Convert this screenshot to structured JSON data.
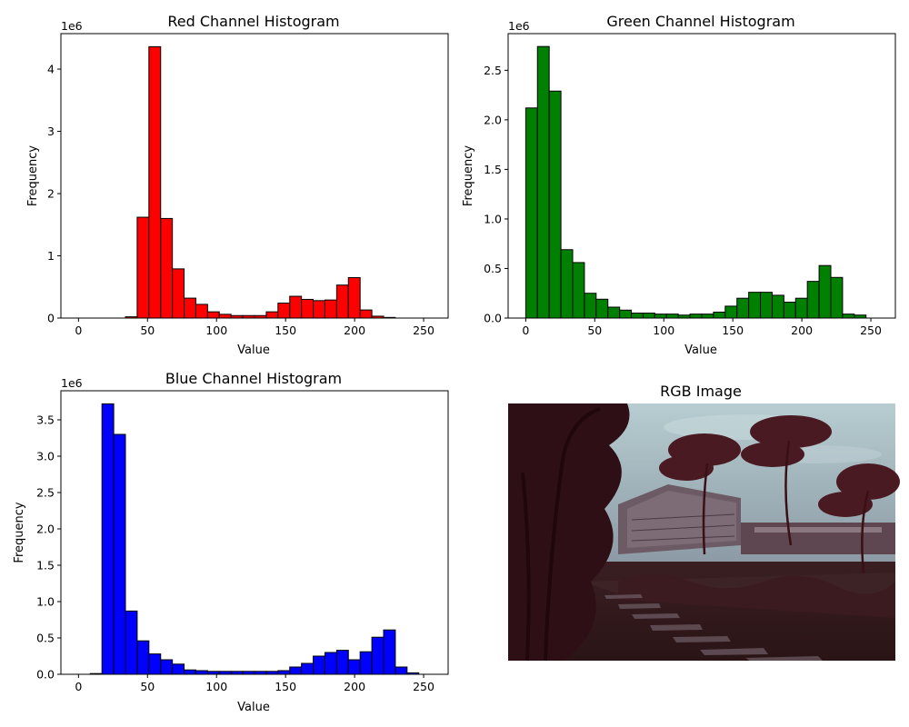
{
  "chart_data": [
    {
      "type": "bar",
      "title": "Red Channel Histogram",
      "xlabel": "Value",
      "ylabel": "Frequency",
      "scale_label": "1e6",
      "color": "#ff0000",
      "xlim": [
        -12.75,
        267.75
      ],
      "ylim": [
        0,
        4.57
      ],
      "xticks": [
        0,
        50,
        100,
        150,
        200,
        250
      ],
      "yticks": [
        0,
        1,
        2,
        3,
        4
      ],
      "ytick_labels": [
        "0",
        "1",
        "2",
        "3",
        "4"
      ],
      "bin_width": 8.5,
      "values": [
        0,
        0,
        0,
        0,
        0.02,
        1.62,
        4.36,
        1.6,
        0.79,
        0.32,
        0.22,
        0.1,
        0.06,
        0.04,
        0.04,
        0.04,
        0.1,
        0.24,
        0.35,
        0.3,
        0.28,
        0.29,
        0.53,
        0.65,
        0.13,
        0.03,
        0.01,
        0,
        0,
        0
      ]
    },
    {
      "type": "bar",
      "title": "Green Channel Histogram",
      "xlabel": "Value",
      "ylabel": "Frequency",
      "scale_label": "1e6",
      "color": "#008000",
      "xlim": [
        -12.75,
        267.75
      ],
      "ylim": [
        0,
        2.87
      ],
      "xticks": [
        0,
        50,
        100,
        150,
        200,
        250
      ],
      "yticks": [
        0,
        0.5,
        1.0,
        1.5,
        2.0,
        2.5
      ],
      "ytick_labels": [
        "0.0",
        "0.5",
        "1.0",
        "1.5",
        "2.0",
        "2.5"
      ],
      "bin_width": 8.5,
      "values": [
        2.12,
        2.74,
        2.29,
        0.69,
        0.56,
        0.25,
        0.19,
        0.11,
        0.08,
        0.05,
        0.05,
        0.04,
        0.04,
        0.03,
        0.04,
        0.04,
        0.06,
        0.12,
        0.2,
        0.26,
        0.26,
        0.23,
        0.16,
        0.2,
        0.37,
        0.53,
        0.41,
        0.04,
        0.03,
        0
      ]
    },
    {
      "type": "bar",
      "title": "Blue Channel Histogram",
      "xlabel": "Value",
      "ylabel": "Frequency",
      "scale_label": "1e6",
      "color": "#0000ff",
      "xlim": [
        -12.75,
        267.75
      ],
      "ylim": [
        0,
        3.9
      ],
      "xticks": [
        0,
        50,
        100,
        150,
        200,
        250
      ],
      "yticks": [
        0,
        0.5,
        1.0,
        1.5,
        2.0,
        2.5,
        3.0,
        3.5
      ],
      "ytick_labels": [
        "0.0",
        "0.5",
        "1.0",
        "1.5",
        "2.0",
        "2.5",
        "3.0",
        "3.5"
      ],
      "bin_width": 8.5,
      "values": [
        0,
        0.01,
        3.72,
        3.3,
        0.87,
        0.46,
        0.28,
        0.2,
        0.14,
        0.06,
        0.05,
        0.04,
        0.04,
        0.04,
        0.04,
        0.04,
        0.04,
        0.05,
        0.1,
        0.15,
        0.25,
        0.3,
        0.33,
        0.2,
        0.31,
        0.51,
        0.61,
        0.1,
        0.02,
        0
      ]
    }
  ],
  "image_panel": {
    "title": "RGB Image"
  }
}
